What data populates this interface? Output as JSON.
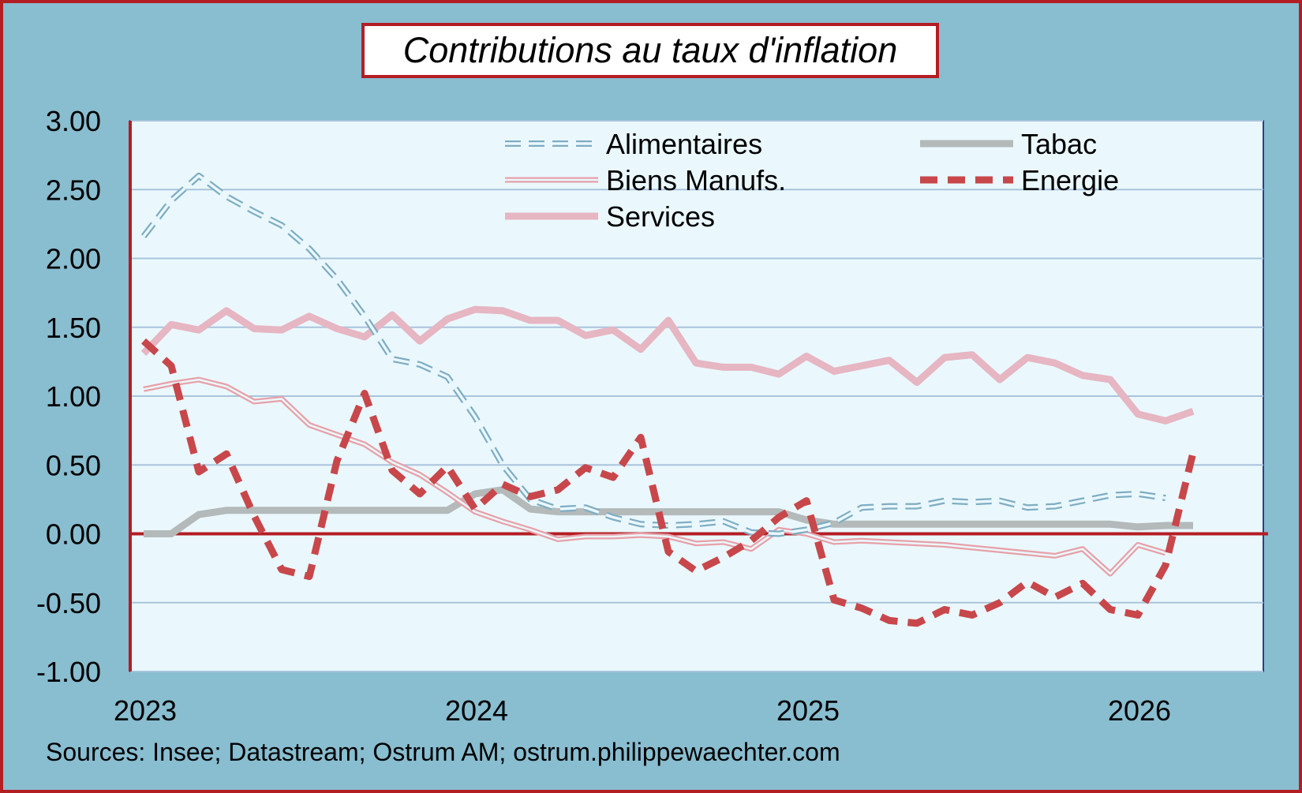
{
  "title": "Contributions au taux d'inflation",
  "source": "Sources: Insee; Datastream; Ostrum AM; ostrum.philippewaechter.com",
  "colors": {
    "background": "#89bdd0",
    "plot_background": "#eaf8fd",
    "frame": "#b31e24",
    "gridline": "#a9c4dc"
  },
  "chart_data": {
    "type": "line",
    "title": "Contributions au taux d'inflation",
    "xlabel": "",
    "ylabel": "",
    "ylim": [
      -1.0,
      3.0
    ],
    "ytick_labels": [
      "3.00",
      "2.50",
      "2.00",
      "1.50",
      "1.00",
      "0.50",
      "0.00",
      "-0.50",
      "-1.00"
    ],
    "yticks": [
      3.0,
      2.5,
      2.0,
      1.5,
      1.0,
      0.5,
      0.0,
      -0.5,
      -1.0
    ],
    "xlim": [
      0,
      41
    ],
    "xtick_labels": [
      "2023",
      "2024",
      "2025",
      "2026"
    ],
    "xticks": [
      0,
      12,
      24,
      36
    ],
    "legend_position": "top-right",
    "series": [
      {
        "name": "Alimentaires",
        "color": "#7fadc2",
        "style": "dashed-double",
        "values": [
          2.16,
          2.42,
          2.6,
          2.45,
          2.34,
          2.24,
          2.07,
          1.85,
          1.58,
          1.27,
          1.23,
          1.14,
          0.85,
          0.5,
          0.25,
          0.18,
          0.19,
          0.12,
          0.07,
          0.06,
          0.07,
          0.09,
          0.01,
          0.0,
          0.03,
          0.08,
          0.19,
          0.2,
          0.2,
          0.24,
          0.23,
          0.24,
          0.19,
          0.2,
          0.24,
          0.28,
          0.29,
          0.26
        ]
      },
      {
        "name": "Biens Manufs.",
        "color": "#e8a0a8",
        "style": "double",
        "values": [
          1.05,
          1.09,
          1.12,
          1.07,
          0.96,
          0.98,
          0.79,
          0.72,
          0.65,
          0.52,
          0.43,
          0.3,
          0.16,
          0.09,
          0.03,
          -0.04,
          -0.02,
          -0.02,
          -0.01,
          -0.02,
          -0.07,
          -0.06,
          -0.11,
          0.03,
          0.0,
          -0.06,
          -0.05,
          -0.06,
          -0.07,
          -0.08,
          -0.1,
          -0.12,
          -0.14,
          -0.16,
          -0.11,
          -0.29,
          -0.08,
          -0.14
        ]
      },
      {
        "name": "Services",
        "color": "#e6b6c2",
        "style": "solid-thick",
        "values": [
          1.31,
          1.52,
          1.48,
          1.62,
          1.49,
          1.48,
          1.58,
          1.49,
          1.43,
          1.59,
          1.4,
          1.56,
          1.63,
          1.62,
          1.55,
          1.55,
          1.44,
          1.48,
          1.34,
          1.55,
          1.24,
          1.21,
          1.21,
          1.16,
          1.29,
          1.18,
          1.22,
          1.26,
          1.1,
          1.28,
          1.3,
          1.12,
          1.28,
          1.24,
          1.15,
          1.12,
          0.87,
          0.82,
          0.89
        ]
      },
      {
        "name": "Tabac",
        "color": "#b4b9ba",
        "style": "solid-thick",
        "values": [
          0.0,
          0.0,
          0.14,
          0.17,
          0.17,
          0.17,
          0.17,
          0.17,
          0.17,
          0.17,
          0.17,
          0.17,
          0.29,
          0.32,
          0.18,
          0.16,
          0.16,
          0.16,
          0.16,
          0.16,
          0.16,
          0.16,
          0.16,
          0.16,
          0.1,
          0.07,
          0.07,
          0.07,
          0.07,
          0.07,
          0.07,
          0.07,
          0.07,
          0.07,
          0.07,
          0.07,
          0.05,
          0.06,
          0.06
        ]
      },
      {
        "name": "Energie",
        "color": "#c8474b",
        "style": "dashed-thick",
        "values": [
          1.4,
          1.22,
          0.45,
          0.58,
          0.13,
          -0.26,
          -0.31,
          0.53,
          1.02,
          0.46,
          0.29,
          0.49,
          0.18,
          0.36,
          0.27,
          0.32,
          0.48,
          0.41,
          0.7,
          -0.13,
          -0.27,
          -0.17,
          -0.05,
          0.12,
          0.24,
          -0.48,
          -0.54,
          -0.63,
          -0.65,
          -0.55,
          -0.59,
          -0.5,
          -0.35,
          -0.46,
          -0.36,
          -0.55,
          -0.59,
          -0.23,
          0.59
        ]
      }
    ]
  }
}
